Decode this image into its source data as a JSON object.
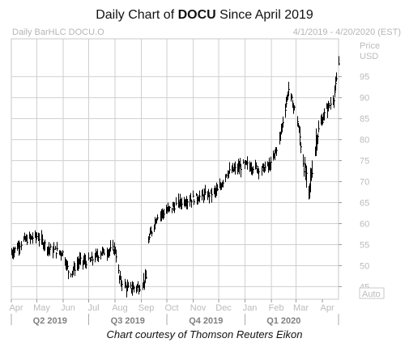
{
  "header": {
    "title_prefix": "Daily Chart of ",
    "title_symbol": "DOCU",
    "title_suffix": " Since April 2019",
    "subtitle_left": "Daily BarHLC DOCU.O",
    "subtitle_right": "4/1/2019 - 4/20/2020 (EST)"
  },
  "caption": "Chart courtesy of Thomson Reuters Eikon",
  "chart_data": {
    "type": "bar-hlc",
    "title": "Daily Chart of DOCU Since April 2019",
    "symbol": "DOCU.O",
    "date_range": [
      "2019-04-01",
      "2020-04-20"
    ],
    "ylabel": "Price USD",
    "ylabel_lines": [
      "Price",
      "USD"
    ],
    "ylim": [
      42,
      104
    ],
    "yticks": [
      45,
      50,
      55,
      60,
      65,
      70,
      75,
      80,
      85,
      90,
      95
    ],
    "y_axis_side": "right",
    "auto_label": "Auto",
    "x_month_labels": [
      "Apr",
      "May",
      "Jun",
      "Jul",
      "Aug",
      "Sep",
      "Oct",
      "Nov",
      "Dec",
      "Jan",
      "Feb",
      "Mar",
      "Apr"
    ],
    "x_quarter_labels": [
      "Q2 2019",
      "Q3 2019",
      "Q4 2019",
      "Q1 2020"
    ],
    "grid": true,
    "series_color": "#000000",
    "price_path": [
      {
        "date": "2019-04-01",
        "close": 53
      },
      {
        "date": "2019-04-15",
        "close": 56
      },
      {
        "date": "2019-05-01",
        "close": 57
      },
      {
        "date": "2019-05-15",
        "close": 54
      },
      {
        "date": "2019-06-01",
        "close": 53
      },
      {
        "date": "2019-06-08",
        "close": 48
      },
      {
        "date": "2019-06-20",
        "close": 51
      },
      {
        "date": "2019-07-01",
        "close": 51
      },
      {
        "date": "2019-07-15",
        "close": 53
      },
      {
        "date": "2019-08-01",
        "close": 54
      },
      {
        "date": "2019-08-06",
        "close": 47
      },
      {
        "date": "2019-08-15",
        "close": 44.5
      },
      {
        "date": "2019-08-30",
        "close": 45
      },
      {
        "date": "2019-09-06",
        "close": 47
      },
      {
        "date": "2019-09-09",
        "close": 56
      },
      {
        "date": "2019-09-20",
        "close": 62
      },
      {
        "date": "2019-10-01",
        "close": 63
      },
      {
        "date": "2019-10-15",
        "close": 65
      },
      {
        "date": "2019-11-01",
        "close": 66
      },
      {
        "date": "2019-11-20",
        "close": 67
      },
      {
        "date": "2019-12-01",
        "close": 68
      },
      {
        "date": "2019-12-10",
        "close": 72
      },
      {
        "date": "2020-01-01",
        "close": 74
      },
      {
        "date": "2020-01-20",
        "close": 73
      },
      {
        "date": "2020-02-01",
        "close": 74
      },
      {
        "date": "2020-02-10",
        "close": 80
      },
      {
        "date": "2020-02-21",
        "close": 92
      },
      {
        "date": "2020-03-01",
        "close": 86
      },
      {
        "date": "2020-03-09",
        "close": 75
      },
      {
        "date": "2020-03-16",
        "close": 67
      },
      {
        "date": "2020-03-25",
        "close": 81
      },
      {
        "date": "2020-04-03",
        "close": 86
      },
      {
        "date": "2020-04-14",
        "close": 90
      },
      {
        "date": "2020-04-20",
        "close": 98
      }
    ]
  }
}
